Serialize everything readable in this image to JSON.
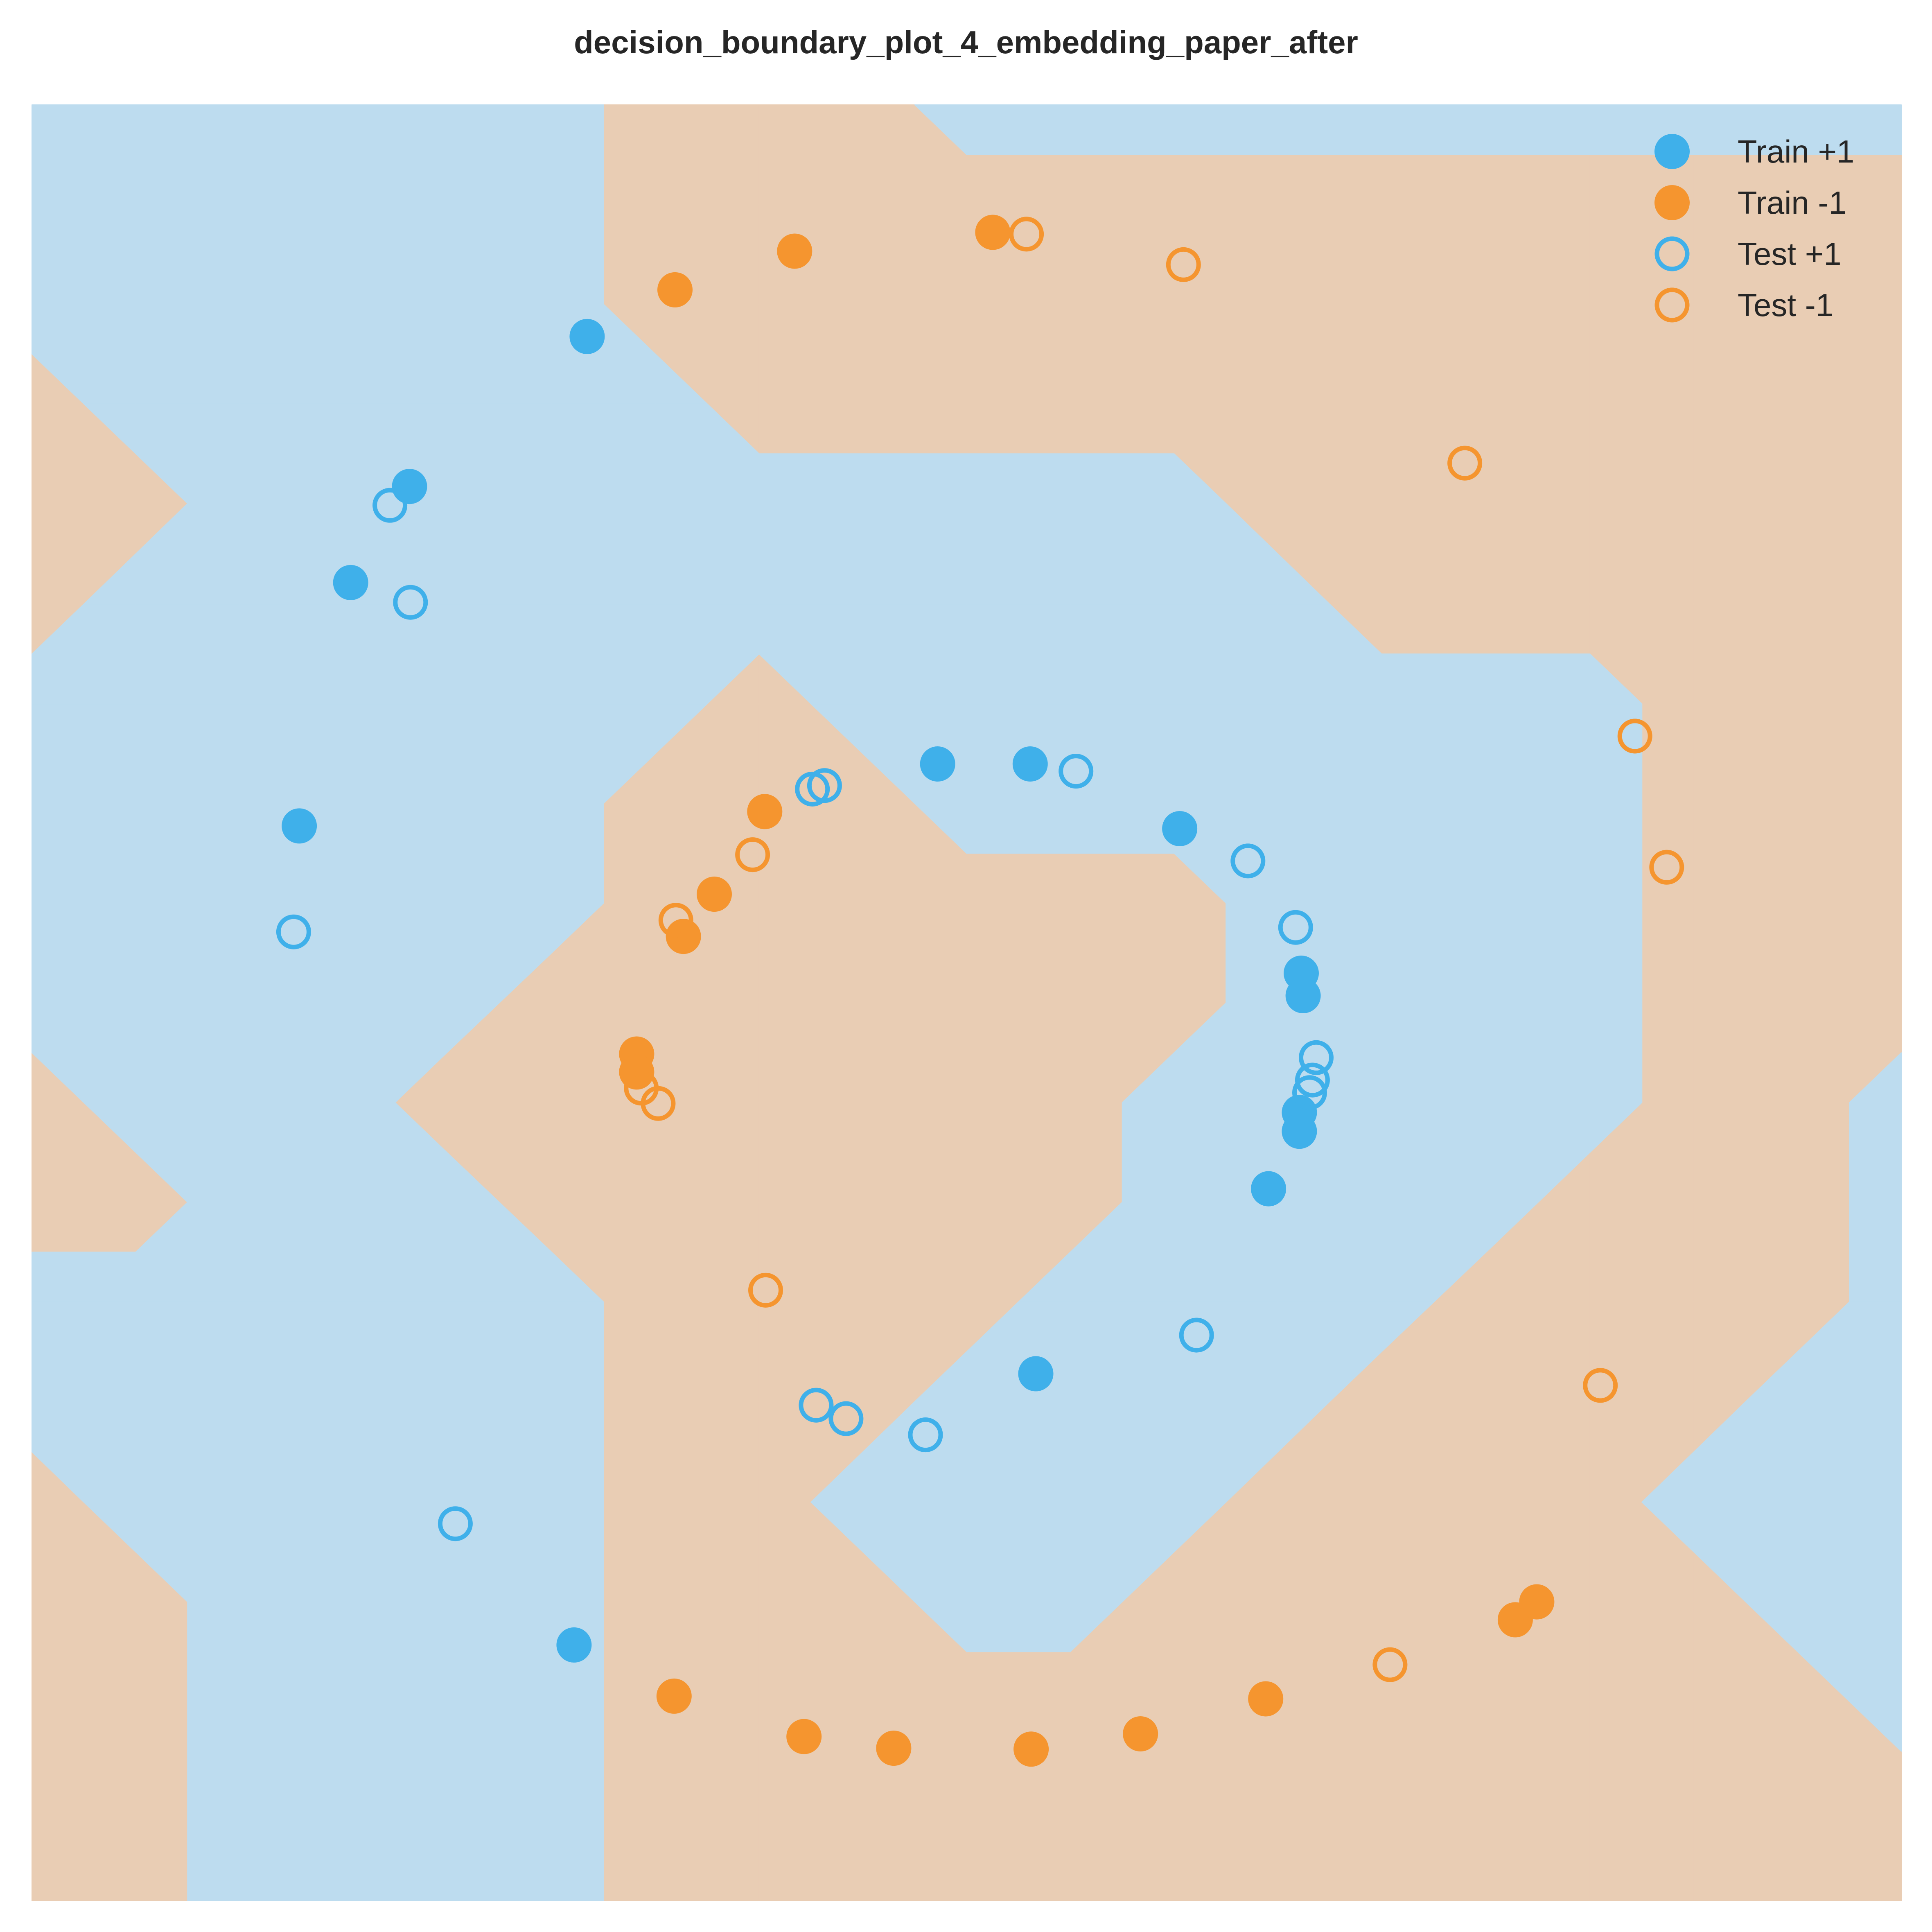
{
  "chart_data": {
    "type": "scatter",
    "title": "decision_boundary_plot_4_embedding_paper_after",
    "xlabel": "",
    "ylabel": "",
    "xlim": [
      -1,
      1
    ],
    "ylim": [
      -1,
      1
    ],
    "grid": false,
    "axes_visible": false,
    "legend_position": "top-right",
    "colors": {
      "positive": "#3fb0ea",
      "negative": "#f5952f",
      "region_positive": "#bddcef",
      "region_negative": "#e9cdb4"
    },
    "background_regions": {
      "description_levels": [
        "+1",
        "-1"
      ],
      "grid_x": [
        -1.0,
        -0.889,
        -0.778,
        -0.667,
        -0.556,
        -0.444,
        -0.333,
        -0.222,
        -0.111,
        0.0,
        0.111,
        0.222,
        0.333,
        0.444,
        0.556,
        0.667,
        0.778,
        0.889,
        1.0
      ],
      "grid_y": [
        1.0,
        0.889,
        0.778,
        0.667,
        0.556,
        0.444,
        0.333,
        0.222,
        0.111,
        0.0,
        -0.111,
        -0.222,
        -0.333,
        -0.444,
        -0.556,
        -0.667,
        -0.778,
        -0.889,
        -1.0
      ],
      "labels": [
        [
          1,
          1,
          1,
          1,
          1,
          1,
          -1,
          -1,
          -1,
          1,
          1,
          1,
          1,
          1,
          1,
          1,
          1,
          1,
          1
        ],
        [
          1,
          1,
          1,
          1,
          1,
          1,
          -1,
          -1,
          -1,
          -1,
          -1,
          -1,
          -1,
          -1,
          -1,
          -1,
          -1,
          -1,
          -1
        ],
        [
          1,
          1,
          1,
          1,
          1,
          1,
          -1,
          -1,
          -1,
          -1,
          -1,
          -1,
          -1,
          -1,
          -1,
          -1,
          -1,
          -1,
          -1
        ],
        [
          -1,
          1,
          1,
          1,
          1,
          1,
          1,
          -1,
          -1,
          -1,
          -1,
          -1,
          -1,
          -1,
          -1,
          -1,
          -1,
          -1,
          -1
        ],
        [
          -1,
          -1,
          1,
          1,
          1,
          1,
          1,
          1,
          1,
          1,
          1,
          1,
          -1,
          -1,
          -1,
          -1,
          -1,
          -1,
          -1
        ],
        [
          -1,
          1,
          1,
          1,
          1,
          1,
          1,
          1,
          1,
          1,
          1,
          1,
          1,
          -1,
          -1,
          -1,
          -1,
          -1,
          -1
        ],
        [
          1,
          1,
          1,
          1,
          1,
          1,
          1,
          -1,
          1,
          1,
          1,
          1,
          1,
          1,
          1,
          1,
          -1,
          -1,
          -1
        ],
        [
          1,
          1,
          1,
          1,
          1,
          1,
          -1,
          -1,
          -1,
          1,
          1,
          1,
          1,
          1,
          1,
          1,
          -1,
          -1,
          -1
        ],
        [
          1,
          1,
          1,
          1,
          1,
          1,
          -1,
          -1,
          -1,
          -1,
          -1,
          -1,
          1,
          1,
          1,
          1,
          -1,
          -1,
          -1
        ],
        [
          1,
          1,
          1,
          1,
          1,
          -1,
          -1,
          -1,
          -1,
          -1,
          -1,
          -1,
          1,
          1,
          1,
          1,
          -1,
          -1,
          -1
        ],
        [
          -1,
          1,
          1,
          1,
          -1,
          -1,
          -1,
          -1,
          -1,
          -1,
          -1,
          1,
          1,
          1,
          1,
          1,
          -1,
          -1,
          1
        ],
        [
          -1,
          -1,
          1,
          1,
          1,
          -1,
          -1,
          -1,
          -1,
          -1,
          -1,
          1,
          1,
          1,
          1,
          -1,
          -1,
          -1,
          1
        ],
        [
          1,
          1,
          1,
          1,
          1,
          1,
          -1,
          -1,
          -1,
          -1,
          1,
          1,
          1,
          1,
          -1,
          -1,
          -1,
          -1,
          1
        ],
        [
          1,
          1,
          1,
          1,
          1,
          1,
          -1,
          -1,
          -1,
          1,
          1,
          1,
          1,
          -1,
          -1,
          -1,
          -1,
          1,
          1
        ],
        [
          -1,
          1,
          1,
          1,
          1,
          1,
          -1,
          -1,
          1,
          1,
          1,
          1,
          -1,
          -1,
          -1,
          -1,
          1,
          1,
          1
        ],
        [
          -1,
          -1,
          1,
          1,
          1,
          1,
          -1,
          -1,
          -1,
          1,
          1,
          -1,
          -1,
          -1,
          -1,
          -1,
          -1,
          1,
          1
        ],
        [
          -1,
          -1,
          1,
          1,
          1,
          1,
          -1,
          -1,
          -1,
          -1,
          -1,
          -1,
          -1,
          -1,
          -1,
          -1,
          -1,
          -1,
          1
        ],
        [
          -1,
          -1,
          1,
          1,
          1,
          1,
          -1,
          -1,
          -1,
          -1,
          -1,
          -1,
          -1,
          -1,
          -1,
          -1,
          -1,
          -1,
          -1
        ],
        [
          -1,
          -1,
          1,
          1,
          1,
          1,
          -1,
          -1,
          -1,
          -1,
          -1,
          -1,
          -1,
          -1,
          -1,
          -1,
          -1,
          -1,
          -1
        ]
      ]
    },
    "series": [
      {
        "name": "Train +1",
        "marker": "filled",
        "color": "#3fb0ea",
        "x": [
          -0.406,
          -0.596,
          -0.659,
          -0.714,
          -0.031,
          0.068,
          0.228,
          0.358,
          0.36,
          0.356,
          0.356,
          0.323,
          0.074,
          -0.42
        ],
        "y": [
          0.742,
          0.575,
          0.468,
          0.197,
          0.266,
          0.266,
          0.194,
          0.033,
          0.008,
          -0.122,
          -0.143,
          -0.207,
          -0.413,
          -0.715
        ]
      },
      {
        "name": "Train -1",
        "marker": "filled",
        "color": "#f5952f",
        "x": [
          -0.312,
          -0.184,
          0.028,
          -0.216,
          -0.27,
          -0.303,
          -0.353,
          -0.353,
          -0.313,
          -0.174,
          -0.078,
          0.069,
          0.186,
          0.32,
          0.587,
          0.61
        ],
        "y": [
          0.794,
          0.837,
          0.858,
          0.213,
          0.121,
          0.074,
          -0.057,
          -0.077,
          -0.772,
          -0.817,
          -0.83,
          -0.831,
          -0.814,
          -0.775,
          -0.687,
          -0.667
        ]
      },
      {
        "name": "Test +1",
        "marker": "hollow",
        "color": "#3fb0ea",
        "x": [
          -0.617,
          -0.595,
          -0.72,
          -0.547,
          -0.165,
          -0.152,
          0.117,
          0.301,
          0.352,
          0.374,
          0.37,
          0.367,
          0.246,
          -0.161,
          -0.129,
          -0.044
        ],
        "y": [
          0.554,
          0.446,
          0.079,
          -0.58,
          0.238,
          0.242,
          0.258,
          0.158,
          0.084,
          -0.061,
          -0.086,
          -0.1,
          -0.37,
          -0.448,
          -0.463,
          -0.481
        ]
      },
      {
        "name": "Test -1",
        "marker": "hollow",
        "color": "#f5952f",
        "x": [
          0.064,
          0.232,
          0.533,
          0.715,
          0.749,
          -0.229,
          -0.311,
          -0.348,
          -0.33,
          -0.215,
          0.678,
          0.453
        ],
        "y": [
          0.856,
          0.822,
          0.601,
          0.297,
          0.151,
          0.165,
          0.092,
          -0.095,
          -0.112,
          -0.32,
          -0.426,
          -0.737
        ]
      }
    ],
    "legend": [
      {
        "label": "Train +1",
        "marker": "filled",
        "color": "#3fb0ea"
      },
      {
        "label": "Train -1",
        "marker": "filled",
        "color": "#f5952f"
      },
      {
        "label": "Test +1",
        "marker": "hollow",
        "color": "#3fb0ea"
      },
      {
        "label": "Test -1",
        "marker": "hollow",
        "color": "#f5952f"
      }
    ]
  }
}
